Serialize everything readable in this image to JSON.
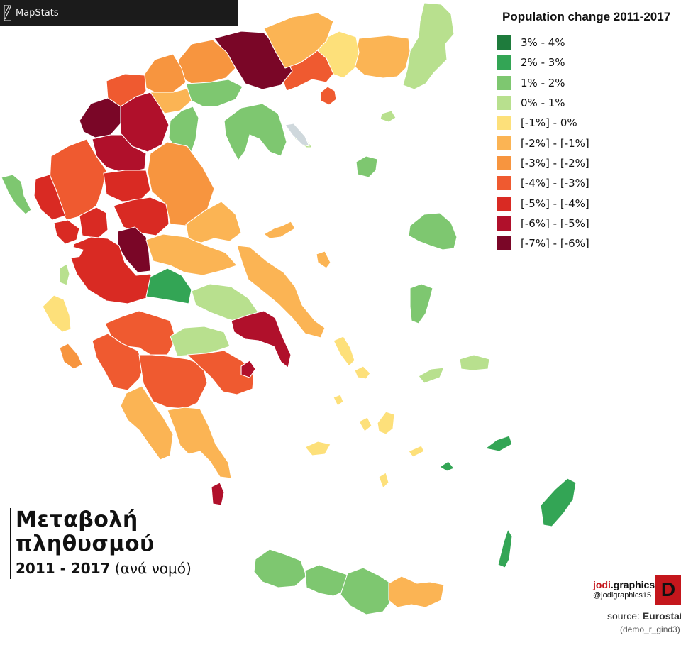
{
  "app": {
    "title": "MapStats"
  },
  "legend": {
    "title": "Population change 2011-2017",
    "items": [
      {
        "label": "3% - 4%",
        "color": "#1e7b3c"
      },
      {
        "label": "2% - 3%",
        "color": "#33a555"
      },
      {
        "label": "1% - 2%",
        "color": "#7ec770"
      },
      {
        "label": "0% - 1%",
        "color": "#b8e08e"
      },
      {
        "label": "[-1%] - 0%",
        "color": "#fde07a"
      },
      {
        "label": "[-2%] - [-1%]",
        "color": "#fbb454"
      },
      {
        "label": "[-3%] - [-2%]",
        "color": "#f7953f"
      },
      {
        "label": "[-4%] - [-3%]",
        "color": "#ef5a30"
      },
      {
        "label": "[-5%] - [-4%]",
        "color": "#d92a23"
      },
      {
        "label": "[-6%] - [-5%]",
        "color": "#b0102b"
      },
      {
        "label": "[-7%] - [-6%]",
        "color": "#7a0627"
      }
    ]
  },
  "heading": {
    "line1": "Μεταβολή",
    "line2": "πληθυσμού",
    "years": "2011 - 2017",
    "suffix": "(ανά νομό)"
  },
  "brand": {
    "name_red": "jodi",
    "name_rest": ".graphics",
    "handle": "@jodigraphics15",
    "logo_text": "D"
  },
  "source": {
    "prefix": "source: ",
    "name": "Eurostat",
    "code": "(demo_r_gind3)"
  },
  "map": {
    "regions": [
      {
        "name": "evros",
        "class": 3
      },
      {
        "name": "rodopi",
        "class": 5
      },
      {
        "name": "xanthi",
        "class": 4
      },
      {
        "name": "kavala",
        "class": 7
      },
      {
        "name": "thasos",
        "class": 7
      },
      {
        "name": "drama",
        "class": 10
      },
      {
        "name": "serres",
        "class": 5
      },
      {
        "name": "kilkis",
        "class": 6
      },
      {
        "name": "pella",
        "class": 6
      },
      {
        "name": "florina",
        "class": 7
      },
      {
        "name": "kastoria",
        "class": 10
      },
      {
        "name": "kozani",
        "class": 9
      },
      {
        "name": "grevena",
        "class": 9
      },
      {
        "name": "imathia",
        "class": 5
      },
      {
        "name": "pieria",
        "class": 2
      },
      {
        "name": "thessaloniki",
        "class": 2
      },
      {
        "name": "chalkidiki",
        "class": 2
      },
      {
        "name": "athos",
        "class": 3
      },
      {
        "name": "ioannina",
        "class": 7
      },
      {
        "name": "thesprotia",
        "class": 8
      },
      {
        "name": "corfu",
        "class": 2
      },
      {
        "name": "preveza",
        "class": 8
      },
      {
        "name": "arta",
        "class": 8
      },
      {
        "name": "trikala",
        "class": 8
      },
      {
        "name": "karditsa",
        "class": 8
      },
      {
        "name": "larisa",
        "class": 6
      },
      {
        "name": "magnesia",
        "class": 5
      },
      {
        "name": "evrytania",
        "class": 10
      },
      {
        "name": "aitoloakarnania",
        "class": 8
      },
      {
        "name": "lefkada",
        "class": 3
      },
      {
        "name": "kefalonia",
        "class": 4
      },
      {
        "name": "zakynthos",
        "class": 6
      },
      {
        "name": "fthiotida",
        "class": 5
      },
      {
        "name": "fokida",
        "class": 1
      },
      {
        "name": "viotia",
        "class": 3
      },
      {
        "name": "evia",
        "class": 5
      },
      {
        "name": "attica",
        "class": 9
      },
      {
        "name": "achaia",
        "class": 7
      },
      {
        "name": "ilia",
        "class": 7
      },
      {
        "name": "korinthia",
        "class": 3
      },
      {
        "name": "arkadia",
        "class": 7
      },
      {
        "name": "argolida",
        "class": 7
      },
      {
        "name": "messinia",
        "class": 5
      },
      {
        "name": "lakonia",
        "class": 5
      },
      {
        "name": "kythira",
        "class": 9
      },
      {
        "name": "lesvos",
        "class": 2
      },
      {
        "name": "chios",
        "class": 2
      },
      {
        "name": "samos",
        "class": 3
      },
      {
        "name": "ikaria",
        "class": 3
      },
      {
        "name": "lemnos",
        "class": 2
      },
      {
        "name": "dodecanese-rhodes",
        "class": 1
      },
      {
        "name": "dodecanese-kos",
        "class": 1
      },
      {
        "name": "dodecanese-karpathos",
        "class": 1
      },
      {
        "name": "dodecanese-kalymnos",
        "class": 1
      },
      {
        "name": "cyclades-naxos",
        "class": 4
      },
      {
        "name": "cyclades-andros",
        "class": 4
      },
      {
        "name": "cyclades-tinos",
        "class": 4
      },
      {
        "name": "cyclades-paros",
        "class": 4
      },
      {
        "name": "cyclades-milos",
        "class": 4
      },
      {
        "name": "cyclades-syros",
        "class": 4
      },
      {
        "name": "cyclades-santorini",
        "class": 4
      },
      {
        "name": "cyclades-amorgos",
        "class": 4
      },
      {
        "name": "crete-chania",
        "class": 2
      },
      {
        "name": "crete-rethymno",
        "class": 2
      },
      {
        "name": "crete-heraklion",
        "class": 2
      },
      {
        "name": "crete-lasithi",
        "class": 5
      },
      {
        "name": "sporades",
        "class": 5
      },
      {
        "name": "skyros",
        "class": 5
      },
      {
        "name": "aegina-salamina",
        "class": 9
      },
      {
        "name": "samothraki",
        "class": 3
      }
    ]
  }
}
